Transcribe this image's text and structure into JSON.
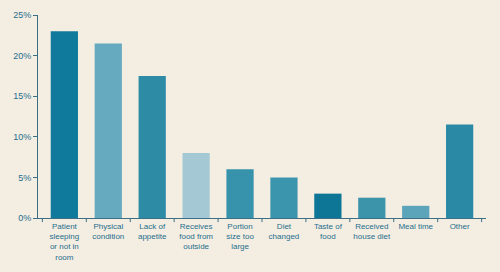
{
  "chart_data": {
    "type": "bar",
    "categories": [
      "Patient sleeping or not in room",
      "Physical condition",
      "Lack of appetite",
      "Receives food from outside",
      "Portion size too large",
      "Diet changed",
      "Taste of food",
      "Received house diet",
      "Meal time",
      "Other"
    ],
    "values": [
      23,
      21.5,
      17.5,
      8,
      6,
      5,
      3,
      2.5,
      1.5,
      11.5
    ],
    "colors": [
      "#0f7a9b",
      "#66aabf",
      "#2d8ba6",
      "#a5c9d4",
      "#3693ab",
      "#3b96ad",
      "#0d7596",
      "#3c94ab",
      "#5ca4ba",
      "#2a8aa5"
    ],
    "ylim": [
      0,
      25
    ],
    "yticks": [
      {
        "value": 0,
        "label": "0%"
      },
      {
        "value": 5,
        "label": "5%"
      },
      {
        "value": 10,
        "label": "10%"
      },
      {
        "value": 15,
        "label": "15%"
      },
      {
        "value": 20,
        "label": "20%"
      },
      {
        "value": 25,
        "label": "25%"
      }
    ],
    "grid": false
  }
}
